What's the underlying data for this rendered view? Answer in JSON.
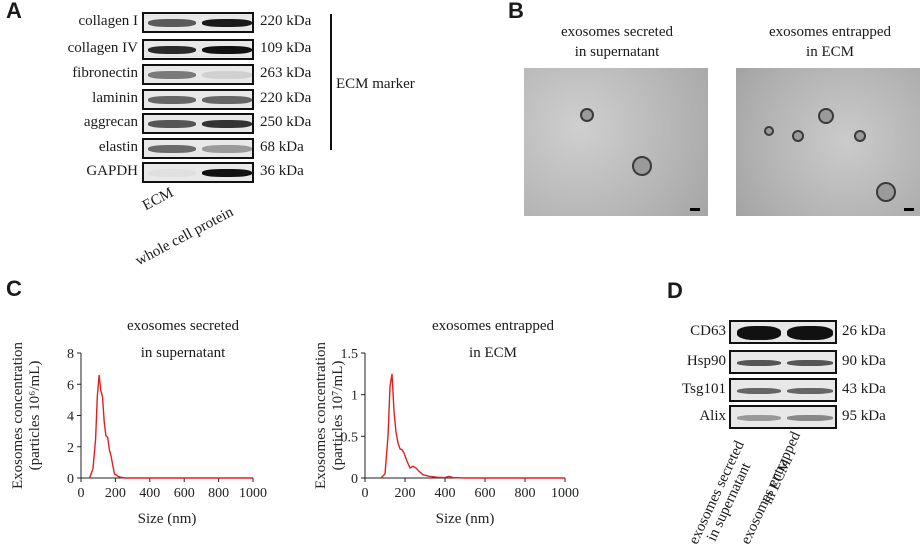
{
  "panels": {
    "a": "A",
    "b": "B",
    "c": "C",
    "d": "D"
  },
  "panel_a": {
    "rows": [
      {
        "label": "collagen I",
        "kda": "220 kDa"
      },
      {
        "label": "collagen IV",
        "kda": "109 kDa"
      },
      {
        "label": "fibronectin",
        "kda": "263 kDa"
      },
      {
        "label": "laminin",
        "kda": "220 kDa"
      },
      {
        "label": "aggrecan",
        "kda": "250 kDa"
      },
      {
        "label": "elastin",
        "kda": "68 kDa"
      },
      {
        "label": "GAPDH",
        "kda": "36 kDa"
      }
    ],
    "bracket_label": "ECM marker",
    "lanes": [
      "ECM",
      "whole cell protein"
    ]
  },
  "panel_b": {
    "left_title_1": "exosomes secreted",
    "left_title_2": "in supernatant",
    "right_title_1": "exosomes entrapped",
    "right_title_2": "in ECM"
  },
  "panel_d": {
    "rows": [
      {
        "label": "CD63",
        "kda": "26 kDa"
      },
      {
        "label": "Hsp90",
        "kda": "90 kDa"
      },
      {
        "label": "Tsg101",
        "kda": "43 kDa"
      },
      {
        "label": "Alix",
        "kda": "95 kDa"
      }
    ],
    "lane1_line1": "exosomes secreted",
    "lane1_line2": "in supernatant",
    "lane2_line1": "exosomes entrapped",
    "lane2_line2": "in ECM"
  },
  "chart_data": [
    {
      "type": "line",
      "title_line1": "exosomes secreted",
      "title_line2": "in supernatant",
      "xlabel": "Size (nm)",
      "ylabel_line1": "Exosomes concentration",
      "ylabel_line2": "(particles 10⁶/mL)",
      "xlim": [
        0,
        1000
      ],
      "ylim": [
        0,
        8
      ],
      "xticks": [
        "0",
        "200",
        "400",
        "600",
        "800",
        "1000"
      ],
      "yticks": [
        "0",
        "2",
        "4",
        "6",
        "8"
      ],
      "line_color": "#e02020",
      "x": [
        50,
        70,
        85,
        95,
        105,
        115,
        125,
        135,
        145,
        155,
        165,
        175,
        185,
        195,
        205,
        215,
        230,
        260,
        300,
        400,
        1000
      ],
      "y": [
        0,
        0.6,
        2.5,
        5.2,
        6.6,
        5.6,
        5.2,
        3.6,
        2.7,
        2.6,
        1.8,
        1.4,
        0.8,
        0.25,
        0.2,
        0.1,
        0.05,
        0,
        0,
        0,
        0
      ]
    },
    {
      "type": "line",
      "title_line1": "exosomes entrapped",
      "title_line2": "in ECM",
      "xlabel": "Size (nm)",
      "ylabel_line1": "Exosomes concentration",
      "ylabel_line2": "(particles 10⁷/mL)",
      "xlim": [
        0,
        1000
      ],
      "ylim": [
        0,
        1.5
      ],
      "xticks": [
        "0",
        "200",
        "400",
        "600",
        "800",
        "1000"
      ],
      "yticks": [
        "0",
        "0.5",
        "1",
        "1.5"
      ],
      "line_color": "#e02020",
      "x": [
        80,
        100,
        115,
        125,
        135,
        145,
        155,
        165,
        175,
        185,
        195,
        210,
        225,
        240,
        255,
        270,
        290,
        320,
        360,
        400,
        420,
        440,
        500,
        1000
      ],
      "y": [
        0,
        0.05,
        0.5,
        1.1,
        1.25,
        0.8,
        0.55,
        0.42,
        0.35,
        0.34,
        0.3,
        0.2,
        0.12,
        0.14,
        0.12,
        0.08,
        0.04,
        0.02,
        0.01,
        0.005,
        0.02,
        0.005,
        0,
        0
      ]
    }
  ]
}
